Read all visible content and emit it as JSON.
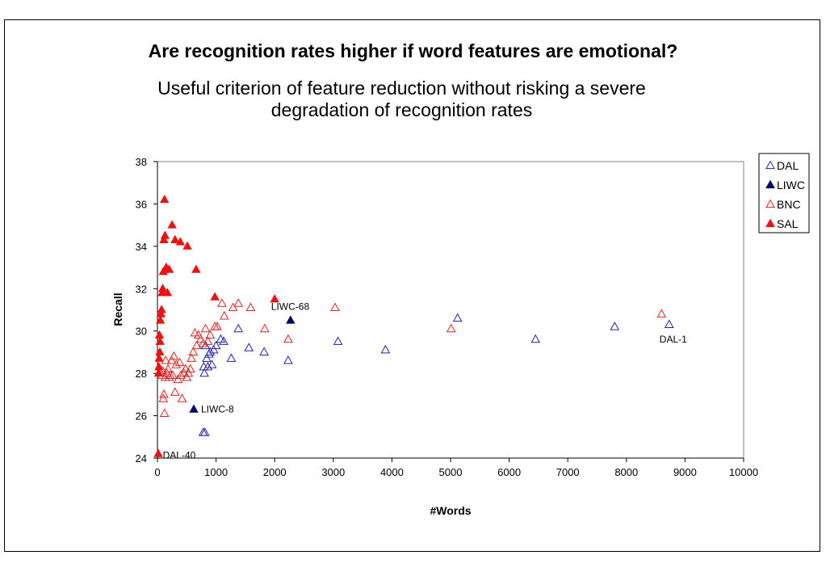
{
  "chart_data": {
    "type": "scatter",
    "title": "Are recognition rates higher if word features are emotional?",
    "subtitle": "Useful criterion of feature reduction without risking a severe degradation of recognition rates",
    "xlabel": "#Words",
    "ylabel": "Recall",
    "xlim": [
      0,
      10000
    ],
    "ylim": [
      24,
      38
    ],
    "xticks": [
      0,
      1000,
      2000,
      3000,
      4000,
      5000,
      6000,
      7000,
      8000,
      9000,
      10000
    ],
    "yticks": [
      24,
      26,
      28,
      30,
      32,
      34,
      36,
      38
    ],
    "grid": false,
    "legend_position": "right",
    "series": [
      {
        "name": "DAL",
        "marker": "triangle-open",
        "color": "#2222aa",
        "points": [
          [
            8730,
            30.3
          ],
          [
            7800,
            30.2
          ],
          [
            6450,
            29.6
          ],
          [
            5120,
            30.6
          ],
          [
            3890,
            29.1
          ],
          [
            3080,
            29.5
          ],
          [
            2230,
            28.6
          ],
          [
            1820,
            29.0
          ],
          [
            1560,
            29.2
          ],
          [
            1380,
            30.1
          ],
          [
            1260,
            28.7
          ],
          [
            1130,
            29.5
          ],
          [
            1080,
            29.6
          ],
          [
            1000,
            29.3
          ],
          [
            960,
            29.1
          ],
          [
            930,
            28.4
          ],
          [
            900,
            29.0
          ],
          [
            880,
            28.9
          ],
          [
            860,
            28.3
          ],
          [
            840,
            28.7
          ],
          [
            820,
            29.3
          ],
          [
            800,
            28.0
          ],
          [
            790,
            28.3
          ],
          [
            780,
            25.2
          ],
          [
            810,
            25.2
          ]
        ]
      },
      {
        "name": "LIWC",
        "marker": "triangle-filled",
        "color": "#000066",
        "points": [
          [
            2270,
            30.5
          ],
          [
            620,
            26.3
          ]
        ]
      },
      {
        "name": "BNC",
        "marker": "triangle-open",
        "color": "#dd2222",
        "points": [
          [
            8600,
            30.8
          ],
          [
            5010,
            30.1
          ],
          [
            3030,
            31.1
          ],
          [
            2230,
            29.6
          ],
          [
            1830,
            30.1
          ],
          [
            1590,
            31.1
          ],
          [
            1380,
            31.3
          ],
          [
            1290,
            31.1
          ],
          [
            1140,
            30.7
          ],
          [
            1100,
            31.3
          ],
          [
            1020,
            30.2
          ],
          [
            980,
            30.2
          ],
          [
            900,
            29.8
          ],
          [
            860,
            29.5
          ],
          [
            820,
            30.1
          ],
          [
            780,
            29.4
          ],
          [
            740,
            29.6
          ],
          [
            700,
            29.8
          ],
          [
            670,
            29.3
          ],
          [
            640,
            29.9
          ],
          [
            610,
            29.0
          ],
          [
            580,
            28.7
          ],
          [
            560,
            28.2
          ],
          [
            530,
            28.0
          ],
          [
            500,
            27.8
          ],
          [
            480,
            28.2
          ],
          [
            450,
            28.0
          ],
          [
            420,
            26.8
          ],
          [
            400,
            27.9
          ],
          [
            380,
            28.5
          ],
          [
            350,
            27.7
          ],
          [
            320,
            28.4
          ],
          [
            300,
            27.1
          ],
          [
            280,
            28.8
          ],
          [
            260,
            27.9
          ],
          [
            240,
            28.6
          ],
          [
            220,
            27.9
          ],
          [
            200,
            27.8
          ],
          [
            180,
            28.2
          ],
          [
            160,
            28.0
          ],
          [
            140,
            28.6
          ],
          [
            130,
            27.8
          ],
          [
            120,
            26.1
          ],
          [
            110,
            27.0
          ],
          [
            100,
            26.8
          ],
          [
            90,
            28.1
          ],
          [
            80,
            27.9
          ]
        ]
      },
      {
        "name": "SAL",
        "marker": "triangle-filled",
        "color": "#ee1111",
        "points": [
          [
            2000,
            31.5
          ],
          [
            980,
            31.6
          ],
          [
            660,
            32.9
          ],
          [
            510,
            34.0
          ],
          [
            390,
            34.2
          ],
          [
            300,
            34.3
          ],
          [
            250,
            35.0
          ],
          [
            200,
            32.9
          ],
          [
            170,
            31.8
          ],
          [
            150,
            33.0
          ],
          [
            130,
            34.5
          ],
          [
            120,
            36.2
          ],
          [
            110,
            34.3
          ],
          [
            100,
            32.8
          ],
          [
            90,
            32.0
          ],
          [
            80,
            31.8
          ],
          [
            70,
            31.0
          ],
          [
            60,
            30.8
          ],
          [
            50,
            30.5
          ],
          [
            45,
            29.5
          ],
          [
            40,
            29.0
          ],
          [
            35,
            29.8
          ],
          [
            30,
            28.7
          ],
          [
            25,
            28.3
          ],
          [
            20,
            28.0
          ],
          [
            15,
            24.2
          ]
        ]
      }
    ],
    "annotations": [
      {
        "text": "LIWC-68",
        "x": 2270,
        "y": 30.5
      },
      {
        "text": "LIWC-8",
        "x": 620,
        "y": 26.3
      },
      {
        "text": "DAL-40",
        "x": 780,
        "y": 25.2
      },
      {
        "text": "DAL-1",
        "x": 8730,
        "y": 30.3
      }
    ]
  }
}
